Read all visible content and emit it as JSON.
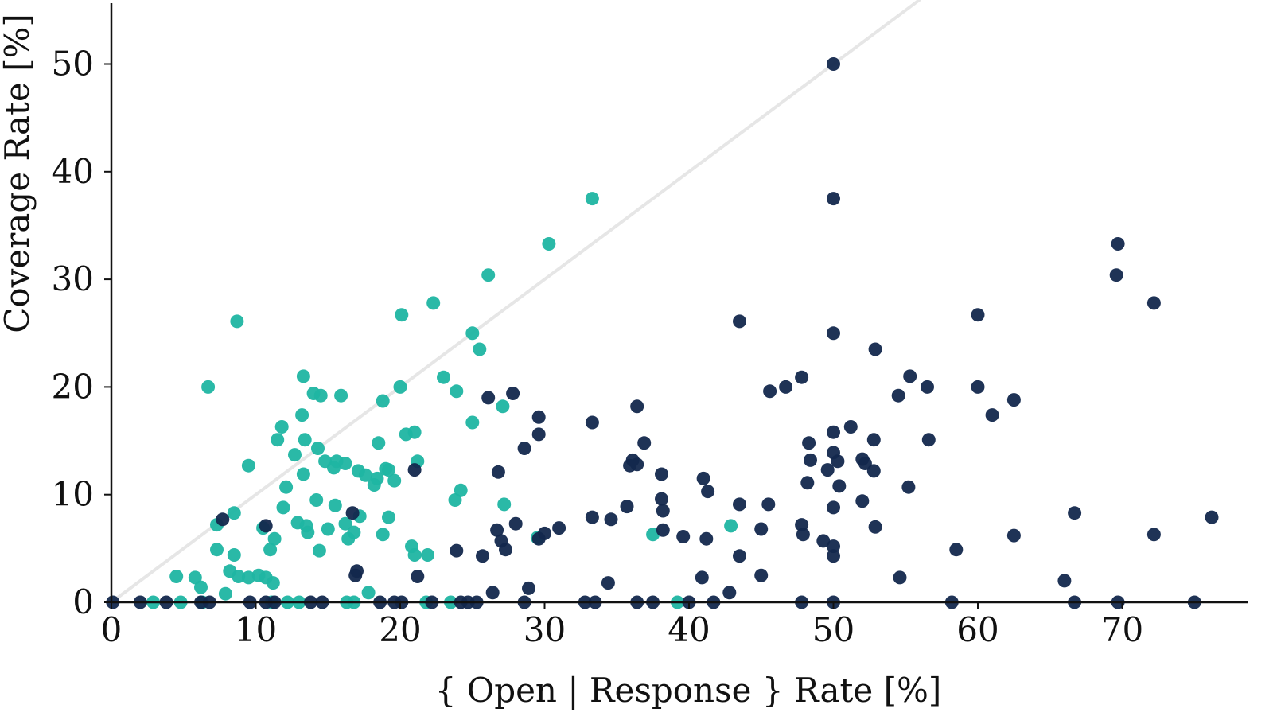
{
  "chart_data": {
    "type": "scatter",
    "title": "",
    "xlabel": "{ Open | Response } Rate [%]",
    "ylabel": "Coverage Rate [%]",
    "xlim": [
      0,
      78.5
    ],
    "ylim": [
      0,
      56
    ],
    "xticks": [
      "0",
      "10",
      "20",
      "30",
      "40",
      "50",
      "60",
      "70"
    ],
    "yticks": [
      "0",
      "10",
      "20",
      "30",
      "40",
      "50"
    ],
    "grid": false,
    "legend": "none",
    "reference_line": {
      "from": [
        0,
        0
      ],
      "to": [
        56,
        56
      ],
      "color": "#e6e6e6"
    },
    "series": [
      {
        "color": "#1fb5a2",
        "points": [
          [
            6.7,
            20.0
          ],
          [
            8.7,
            26.1
          ],
          [
            9.5,
            12.7
          ],
          [
            7.3,
            7.2
          ],
          [
            7.3,
            4.9
          ],
          [
            8.5,
            8.3
          ],
          [
            8.5,
            4.4
          ],
          [
            8.2,
            2.9
          ],
          [
            8.8,
            2.4
          ],
          [
            9.5,
            2.3
          ],
          [
            10.2,
            2.5
          ],
          [
            10.7,
            2.3
          ],
          [
            11.2,
            1.8
          ],
          [
            10.5,
            6.9
          ],
          [
            11.0,
            4.9
          ],
          [
            11.3,
            5.9
          ],
          [
            11.5,
            15.1
          ],
          [
            11.8,
            16.3
          ],
          [
            11.9,
            8.8
          ],
          [
            12.1,
            10.7
          ],
          [
            12.7,
            13.7
          ],
          [
            13.2,
            17.4
          ],
          [
            13.3,
            21.0
          ],
          [
            13.4,
            15.1
          ],
          [
            13.3,
            11.9
          ],
          [
            12.9,
            7.4
          ],
          [
            13.5,
            7.1
          ],
          [
            13.6,
            6.5
          ],
          [
            14.0,
            19.4
          ],
          [
            14.5,
            19.2
          ],
          [
            14.3,
            14.3
          ],
          [
            14.2,
            9.5
          ],
          [
            14.4,
            4.8
          ],
          [
            14.8,
            13.1
          ],
          [
            15.4,
            12.5
          ],
          [
            15.6,
            13.1
          ],
          [
            15.9,
            19.2
          ],
          [
            16.2,
            12.9
          ],
          [
            16.2,
            7.3
          ],
          [
            15.5,
            9.0
          ],
          [
            15.0,
            6.8
          ],
          [
            16.4,
            5.9
          ],
          [
            16.8,
            6.5
          ],
          [
            17.1,
            12.2
          ],
          [
            17.2,
            8.0
          ],
          [
            17.6,
            11.8
          ],
          [
            18.2,
            10.9
          ],
          [
            18.4,
            11.5
          ],
          [
            18.5,
            14.8
          ],
          [
            18.8,
            18.7
          ],
          [
            19.0,
            12.4
          ],
          [
            19.2,
            12.3
          ],
          [
            18.8,
            6.3
          ],
          [
            19.2,
            7.9
          ],
          [
            19.6,
            11.3
          ],
          [
            20.1,
            26.7
          ],
          [
            20.0,
            20.0
          ],
          [
            20.4,
            15.6
          ],
          [
            21.0,
            15.8
          ],
          [
            21.2,
            13.1
          ],
          [
            20.8,
            5.2
          ],
          [
            21.0,
            4.4
          ],
          [
            21.9,
            4.4
          ],
          [
            22.3,
            27.8
          ],
          [
            23.0,
            20.9
          ],
          [
            23.9,
            19.6
          ],
          [
            24.2,
            10.4
          ],
          [
            23.8,
            9.5
          ],
          [
            25.0,
            25.0
          ],
          [
            25.5,
            23.5
          ],
          [
            25.0,
            16.7
          ],
          [
            26.1,
            30.4
          ],
          [
            27.1,
            18.2
          ],
          [
            27.2,
            9.1
          ],
          [
            29.5,
            6.0
          ],
          [
            30.3,
            33.3
          ],
          [
            33.3,
            37.5
          ],
          [
            37.5,
            6.3
          ],
          [
            42.9,
            7.1
          ],
          [
            4.5,
            2.4
          ],
          [
            5.8,
            2.3
          ],
          [
            6.2,
            1.4
          ],
          [
            17.8,
            0.9
          ],
          [
            7.9,
            0.8
          ],
          [
            4.8,
            0
          ],
          [
            2.9,
            0
          ],
          [
            6.3,
            0
          ],
          [
            11.1,
            0
          ],
          [
            12.2,
            0
          ],
          [
            13.0,
            0
          ],
          [
            16.3,
            0
          ],
          [
            16.8,
            0
          ],
          [
            21.8,
            0
          ],
          [
            23.5,
            0
          ],
          [
            39.2,
            0
          ]
        ]
      },
      {
        "color": "#13284d",
        "points": [
          [
            50.0,
            50.0
          ],
          [
            50.0,
            37.5
          ],
          [
            69.7,
            33.3
          ],
          [
            69.6,
            30.4
          ],
          [
            72.2,
            27.8
          ],
          [
            60.0,
            26.7
          ],
          [
            43.5,
            26.1
          ],
          [
            50.0,
            25.0
          ],
          [
            52.9,
            23.5
          ],
          [
            55.3,
            21.0
          ],
          [
            47.8,
            20.9
          ],
          [
            46.7,
            20.0
          ],
          [
            56.5,
            20.0
          ],
          [
            60.0,
            20.0
          ],
          [
            45.6,
            19.6
          ],
          [
            54.5,
            19.2
          ],
          [
            26.1,
            19.0
          ],
          [
            27.8,
            19.4
          ],
          [
            62.5,
            18.8
          ],
          [
            36.4,
            18.2
          ],
          [
            29.6,
            17.2
          ],
          [
            61.0,
            17.4
          ],
          [
            33.3,
            16.7
          ],
          [
            29.6,
            15.6
          ],
          [
            51.2,
            16.3
          ],
          [
            50.0,
            15.8
          ],
          [
            52.8,
            15.1
          ],
          [
            56.6,
            15.1
          ],
          [
            36.9,
            14.8
          ],
          [
            48.3,
            14.8
          ],
          [
            28.6,
            14.3
          ],
          [
            50.0,
            13.9
          ],
          [
            36.1,
            13.2
          ],
          [
            52.0,
            13.3
          ],
          [
            48.4,
            13.2
          ],
          [
            50.3,
            13.1
          ],
          [
            52.2,
            12.9
          ],
          [
            36.4,
            12.8
          ],
          [
            35.9,
            12.7
          ],
          [
            49.6,
            12.3
          ],
          [
            21.0,
            12.3
          ],
          [
            26.8,
            12.1
          ],
          [
            52.8,
            12.2
          ],
          [
            38.1,
            11.9
          ],
          [
            41.0,
            11.5
          ],
          [
            48.2,
            11.1
          ],
          [
            50.4,
            10.8
          ],
          [
            55.2,
            10.7
          ],
          [
            41.3,
            10.3
          ],
          [
            38.1,
            9.6
          ],
          [
            52.0,
            9.4
          ],
          [
            43.5,
            9.1
          ],
          [
            45.5,
            9.1
          ],
          [
            35.7,
            8.9
          ],
          [
            50.0,
            8.8
          ],
          [
            38.2,
            8.5
          ],
          [
            16.7,
            8.3
          ],
          [
            66.7,
            8.3
          ],
          [
            7.7,
            7.7
          ],
          [
            33.3,
            7.9
          ],
          [
            76.2,
            7.9
          ],
          [
            34.6,
            7.7
          ],
          [
            28.0,
            7.3
          ],
          [
            47.8,
            7.2
          ],
          [
            10.7,
            7.1
          ],
          [
            52.9,
            7.0
          ],
          [
            31.0,
            6.9
          ],
          [
            45.0,
            6.8
          ],
          [
            26.7,
            6.7
          ],
          [
            38.2,
            6.7
          ],
          [
            30.0,
            6.4
          ],
          [
            47.9,
            6.3
          ],
          [
            72.2,
            6.3
          ],
          [
            62.5,
            6.2
          ],
          [
            39.6,
            6.1
          ],
          [
            29.6,
            5.9
          ],
          [
            41.2,
            5.9
          ],
          [
            27.0,
            5.7
          ],
          [
            49.3,
            5.7
          ],
          [
            27.3,
            4.9
          ],
          [
            50.0,
            5.2
          ],
          [
            58.5,
            4.9
          ],
          [
            23.9,
            4.8
          ],
          [
            25.7,
            4.3
          ],
          [
            43.5,
            4.3
          ],
          [
            50.0,
            4.3
          ],
          [
            17.0,
            2.9
          ],
          [
            16.9,
            2.5
          ],
          [
            21.2,
            2.4
          ],
          [
            45.0,
            2.5
          ],
          [
            40.9,
            2.3
          ],
          [
            54.6,
            2.3
          ],
          [
            66.0,
            2.0
          ],
          [
            34.4,
            1.8
          ],
          [
            28.9,
            1.3
          ],
          [
            26.4,
            0.9
          ],
          [
            42.8,
            0.9
          ],
          [
            0.1,
            0
          ],
          [
            2.0,
            0
          ],
          [
            3.8,
            0
          ],
          [
            6.2,
            0
          ],
          [
            6.8,
            0
          ],
          [
            9.6,
            0
          ],
          [
            10.7,
            0
          ],
          [
            11.3,
            0
          ],
          [
            13.8,
            0
          ],
          [
            14.6,
            0
          ],
          [
            18.6,
            0
          ],
          [
            19.6,
            0
          ],
          [
            20.1,
            0
          ],
          [
            22.2,
            0
          ],
          [
            24.2,
            0
          ],
          [
            24.7,
            0
          ],
          [
            25.3,
            0
          ],
          [
            28.6,
            0
          ],
          [
            32.8,
            0
          ],
          [
            33.5,
            0
          ],
          [
            36.4,
            0
          ],
          [
            37.5,
            0
          ],
          [
            40.0,
            0
          ],
          [
            41.7,
            0
          ],
          [
            47.8,
            0
          ],
          [
            50.0,
            0
          ],
          [
            58.2,
            0
          ],
          [
            66.7,
            0
          ],
          [
            69.7,
            0
          ],
          [
            75.0,
            0
          ]
        ]
      }
    ]
  }
}
